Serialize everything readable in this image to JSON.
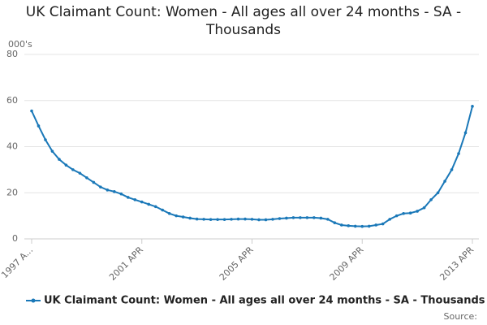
{
  "chart_data": {
    "type": "line",
    "title": "UK Claimant Count: Women - All ages all over 24 months - SA - Thousands",
    "y_label": "000's",
    "source": "Source:",
    "categories": [
      "1997 A...",
      null,
      null,
      null,
      null,
      null,
      null,
      null,
      null,
      null,
      null,
      null,
      null,
      null,
      null,
      null,
      "2001 APR",
      null,
      null,
      null,
      null,
      null,
      null,
      null,
      null,
      null,
      null,
      null,
      null,
      null,
      null,
      null,
      "2005 APR",
      null,
      null,
      null,
      null,
      null,
      null,
      null,
      null,
      null,
      null,
      null,
      null,
      null,
      null,
      null,
      "2009 APR",
      null,
      null,
      null,
      null,
      null,
      null,
      null,
      null,
      null,
      null,
      null,
      null,
      null,
      null,
      null,
      "2013 APR"
    ],
    "series": [
      {
        "name": "UK Claimant Count: Women - All ages all over 24 months - SA - Thousands",
        "color": "#1a78b8",
        "values": [
          55.5,
          49,
          43,
          38,
          34.5,
          32,
          30,
          28.5,
          26.5,
          24.5,
          22.5,
          21.2,
          20.5,
          19.5,
          18,
          17,
          16,
          15,
          14,
          12.5,
          11,
          10,
          9.5,
          9,
          8.6,
          8.5,
          8.4,
          8.4,
          8.4,
          8.5,
          8.6,
          8.6,
          8.5,
          8.3,
          8.3,
          8.5,
          8.8,
          9,
          9.2,
          9.2,
          9.2,
          9.2,
          9,
          8.5,
          7,
          6,
          5.7,
          5.5,
          5.4,
          5.5,
          6,
          6.5,
          8.5,
          10,
          11,
          11.2,
          12,
          13.5,
          17,
          20,
          25,
          30,
          37,
          46,
          57.5
        ]
      }
    ],
    "ylim": [
      0,
      80
    ],
    "yticks": [
      0,
      20,
      40,
      60,
      80
    ],
    "grid": true
  }
}
